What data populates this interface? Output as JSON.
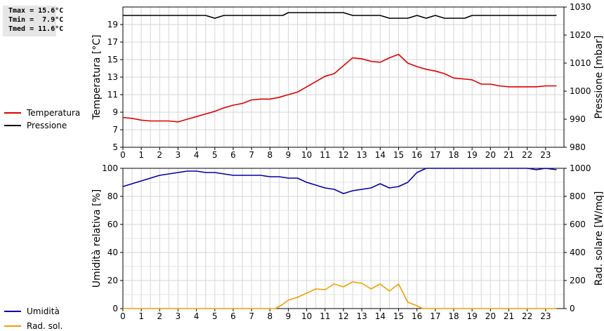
{
  "stats": {
    "tmax": "Tmax = 15.6°C",
    "tmin": "Tmin =  7.9°C",
    "tmed": "Tmed = 11.6°C"
  },
  "legend_top": [
    {
      "label": "Temperatura",
      "color": "#dd0000"
    },
    {
      "label": "Pressione",
      "color": "#000000"
    }
  ],
  "legend_bottom": [
    {
      "label": "Umidità",
      "color": "#0000aa"
    },
    {
      "label": "Rad. sol.",
      "color": "#eea000"
    }
  ],
  "chart_data": [
    {
      "type": "line",
      "xlabel": "",
      "ylabel": "Temperatura [°C]",
      "y2label": "Pressione [mbar]",
      "xlim": [
        0,
        24
      ],
      "ylim": [
        5,
        21
      ],
      "y2lim": [
        980,
        1030
      ],
      "x_ticks": [
        0,
        1,
        2,
        3,
        4,
        5,
        6,
        7,
        8,
        9,
        10,
        11,
        12,
        13,
        14,
        15,
        16,
        17,
        18,
        19,
        20,
        21,
        22,
        23
      ],
      "y_ticks": [
        5,
        7,
        9,
        11,
        13,
        15,
        17,
        19
      ],
      "y2_ticks": [
        980,
        990,
        1000,
        1010,
        1020,
        1030
      ],
      "grid": true,
      "series": [
        {
          "name": "Temperatura",
          "axis": "left",
          "color": "#dd0000",
          "x": [
            0,
            0.5,
            1,
            1.5,
            2,
            2.5,
            3,
            3.5,
            4,
            4.5,
            5,
            5.5,
            6,
            6.5,
            7,
            7.5,
            8,
            8.5,
            9,
            9.5,
            10,
            10.5,
            11,
            11.5,
            12,
            12.5,
            13,
            13.5,
            14,
            14.5,
            15,
            15.5,
            16,
            16.5,
            17,
            17.5,
            18,
            18.5,
            19,
            19.5,
            20,
            20.5,
            21,
            21.5,
            22,
            22.5,
            23,
            23.6
          ],
          "y": [
            8.4,
            8.3,
            8.1,
            8.0,
            8.0,
            8.0,
            7.9,
            8.2,
            8.5,
            8.8,
            9.1,
            9.5,
            9.8,
            10.0,
            10.4,
            10.5,
            10.5,
            10.7,
            11.0,
            11.3,
            11.9,
            12.5,
            13.1,
            13.4,
            14.3,
            15.2,
            15.1,
            14.8,
            14.7,
            15.2,
            15.6,
            14.6,
            14.2,
            13.9,
            13.7,
            13.4,
            12.9,
            12.8,
            12.7,
            12.2,
            12.2,
            12.0,
            11.9,
            11.9,
            11.9,
            11.9,
            12.0,
            12.0
          ]
        },
        {
          "name": "Pressione",
          "axis": "right",
          "color": "#000000",
          "x": [
            0,
            1,
            2,
            3,
            4,
            4.5,
            5,
            5.5,
            6,
            7,
            8,
            8.7,
            9,
            10,
            11,
            11.5,
            12,
            12.5,
            13,
            14,
            14.5,
            15,
            15.5,
            16,
            16.5,
            17,
            17.5,
            18,
            18.6,
            19,
            20,
            21,
            22,
            23,
            23.6
          ],
          "y": [
            1027,
            1027,
            1027,
            1027,
            1027,
            1027,
            1026,
            1027,
            1027,
            1027,
            1027,
            1027,
            1028,
            1028,
            1028,
            1028,
            1028,
            1027,
            1027,
            1027,
            1026,
            1026,
            1026,
            1027,
            1026,
            1027,
            1026,
            1026,
            1026,
            1027,
            1027,
            1027,
            1027,
            1027,
            1027
          ]
        }
      ]
    },
    {
      "type": "line",
      "xlabel": "",
      "ylabel": "Umidità relativa [%]",
      "y2label": "Rad. solare [W/mq]",
      "xlim": [
        0,
        24
      ],
      "ylim": [
        0,
        100
      ],
      "y2lim": [
        0,
        1000
      ],
      "x_ticks": [
        0,
        1,
        2,
        3,
        4,
        5,
        6,
        7,
        8,
        9,
        10,
        11,
        12,
        13,
        14,
        15,
        16,
        17,
        18,
        19,
        20,
        21,
        22,
        23
      ],
      "y_ticks": [
        0,
        20,
        40,
        60,
        80,
        100
      ],
      "y2_ticks": [
        0,
        200,
        400,
        600,
        800,
        1000
      ],
      "grid": true,
      "series": [
        {
          "name": "Umidità",
          "axis": "left",
          "color": "#0000aa",
          "x": [
            0,
            1,
            2,
            3,
            3.5,
            4,
            4.5,
            5,
            5.5,
            6,
            7,
            7.5,
            8,
            8.5,
            9,
            9.5,
            10,
            10.5,
            11,
            11.5,
            12,
            12.5,
            13,
            13.5,
            14,
            14.5,
            15,
            15.5,
            16,
            16.5,
            17,
            18,
            19,
            20,
            21,
            22,
            22.5,
            23,
            23.6
          ],
          "y": [
            87,
            91,
            95,
            97,
            98,
            98,
            97,
            97,
            96,
            95,
            95,
            95,
            94,
            94,
            93,
            93,
            90,
            88,
            86,
            85,
            82,
            84,
            85,
            86,
            89,
            86,
            87,
            90,
            97,
            100,
            100,
            100,
            100,
            100,
            100,
            100,
            99,
            100,
            99
          ]
        },
        {
          "name": "Rad. sol.",
          "axis": "right",
          "color": "#eea000",
          "x": [
            0,
            1,
            2,
            3,
            4,
            5,
            6,
            7,
            8,
            8.3,
            8.7,
            9,
            9.5,
            10,
            10.5,
            11,
            11.5,
            12,
            12.5,
            13,
            13.5,
            14,
            14.5,
            15,
            15.5,
            16,
            16.3,
            17,
            18,
            19,
            20,
            21,
            22,
            23,
            23.6
          ],
          "y": [
            0,
            0,
            0,
            0,
            0,
            0,
            0,
            0,
            0,
            0,
            30,
            60,
            80,
            110,
            140,
            135,
            175,
            155,
            190,
            180,
            140,
            175,
            125,
            175,
            45,
            20,
            0,
            0,
            0,
            0,
            0,
            0,
            0,
            0,
            0
          ]
        }
      ]
    }
  ]
}
